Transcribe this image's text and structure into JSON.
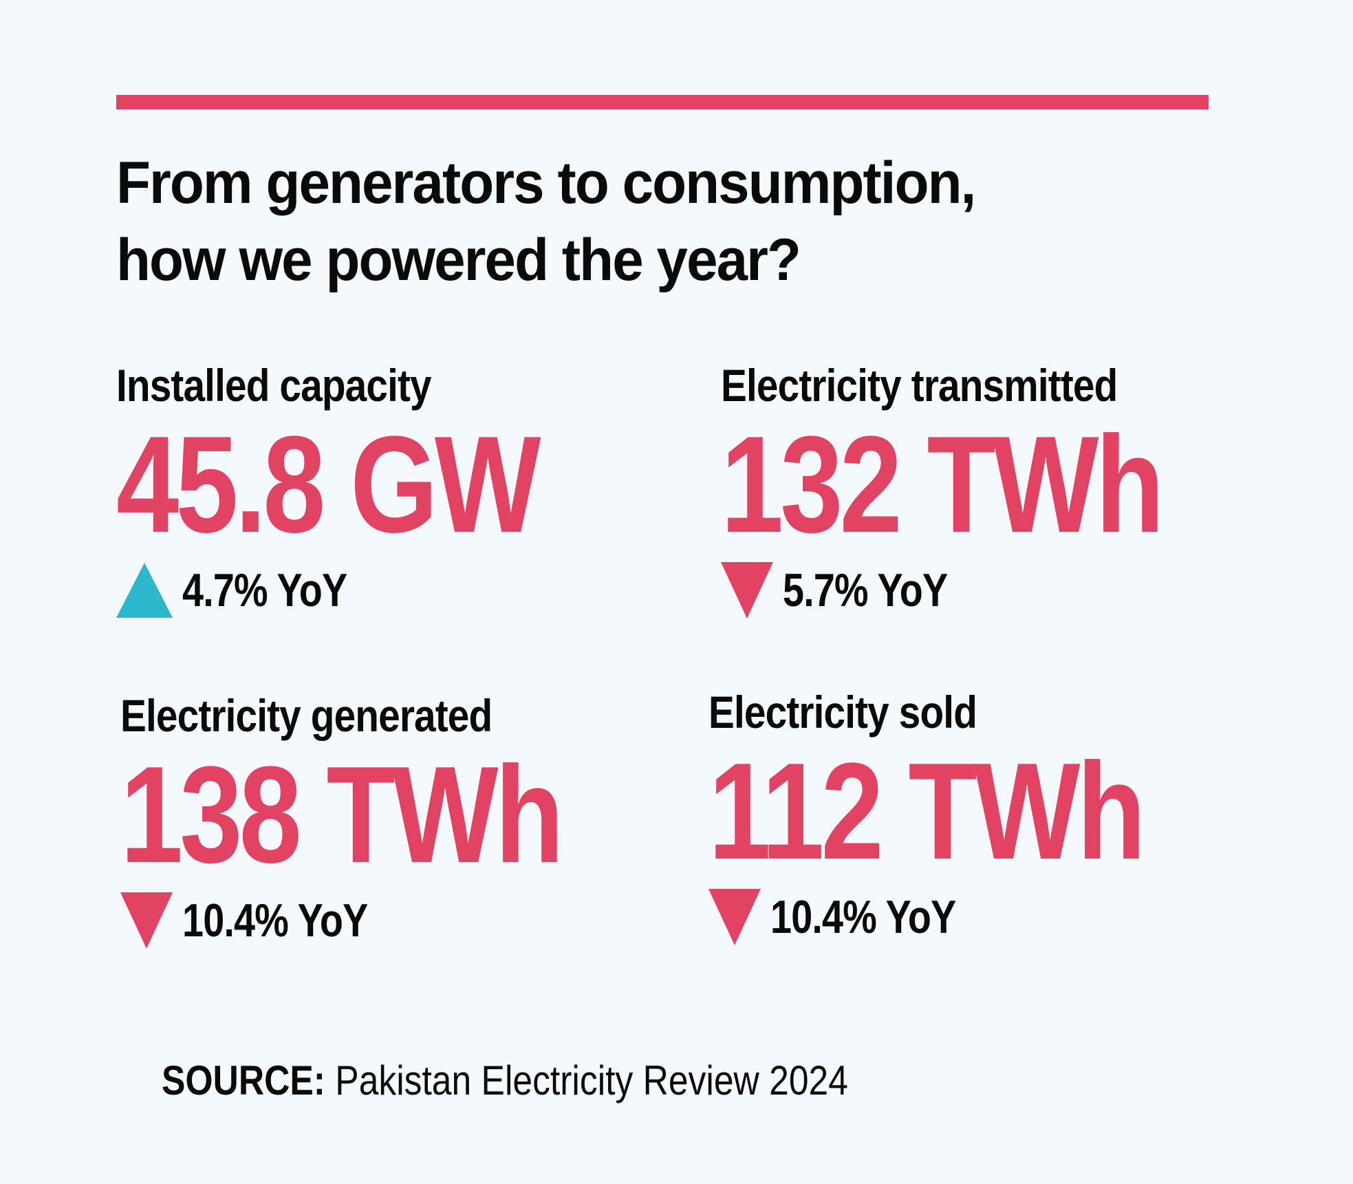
{
  "headline": {
    "line1": "From generators to consumption,",
    "line2": "how we powered the year?"
  },
  "colors": {
    "accent": "#e24362",
    "up": "#2bb7cc",
    "text": "#0a0a0a",
    "background": "#f3f9fc"
  },
  "stats": [
    {
      "label": "Installed capacity",
      "value": "45.8 GW",
      "direction": "up",
      "arrow_icon": "triangle-up-icon",
      "change": "4.7% YoY"
    },
    {
      "label": "Electricity transmitted",
      "value": "132 TWh",
      "direction": "down",
      "arrow_icon": "triangle-down-icon",
      "change": "5.7% YoY"
    },
    {
      "label": "Electricity generated",
      "value": "138 TWh",
      "direction": "down",
      "arrow_icon": "triangle-down-icon",
      "change": "10.4% YoY"
    },
    {
      "label": "Electricity sold",
      "value": "112 TWh",
      "direction": "down",
      "arrow_icon": "triangle-down-icon",
      "change": "10.4% YoY"
    }
  ],
  "source": {
    "key": "SOURCE:",
    "value": "Pakistan Electricity Review 2024"
  }
}
